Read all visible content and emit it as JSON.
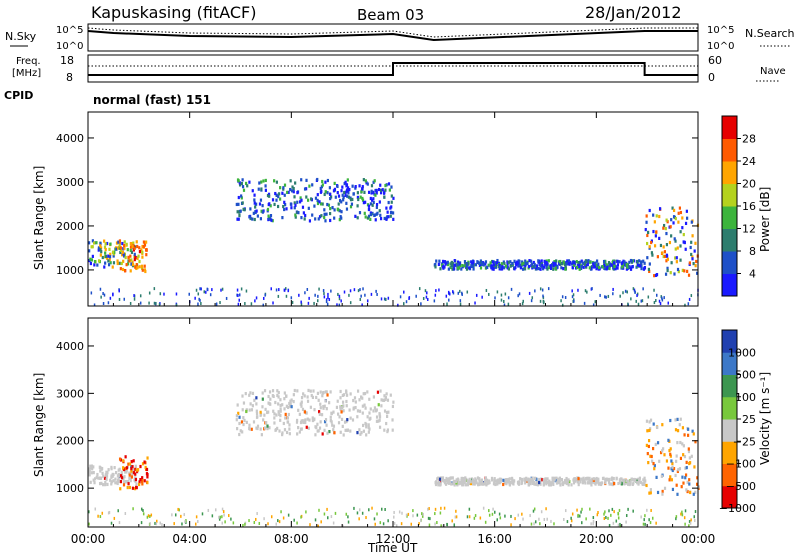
{
  "header": {
    "station": "Kapuskasing (fitACF)",
    "beam": "Beam 03",
    "date": "28/Jan/2012"
  },
  "top_panels": {
    "nsky_label": "N.Sky",
    "nsearch_label": "N.Search",
    "freq_label_1": "Freq.",
    "freq_label_2": "[MHz]",
    "nave_label": "Nave",
    "cpid_label": "CPID",
    "cpid_text": "normal (fast) 151",
    "noise_ticks": [
      "10^5",
      "10^0"
    ],
    "freq_ticks": [
      "18",
      "8"
    ],
    "nave_ticks": [
      "60",
      "0"
    ]
  },
  "chart_data": [
    {
      "type": "heatmap",
      "panel": "power",
      "ylabel": "Slant Range [km]",
      "ylim": [
        180,
        4590
      ],
      "yticks": [
        "1000",
        "2000",
        "3000",
        "4000"
      ],
      "xlim_hours": [
        0,
        24
      ],
      "colorbar": {
        "label": "Power [dB]",
        "ticks": [
          "4",
          "8",
          "12",
          "16",
          "20",
          "24",
          "28"
        ],
        "colors": [
          "#1a1aff",
          "#1e50c8",
          "#2d7d6e",
          "#3cb43c",
          "#b4d21e",
          "#ffa500",
          "#ff5a00",
          "#e60000"
        ]
      },
      "scatter_regions": [
        {
          "t0": 0.0,
          "t1": 1.9,
          "r0": 1100,
          "r1": 1700,
          "level": "low-mid"
        },
        {
          "t0": 1.2,
          "t1": 2.3,
          "r0": 1000,
          "r1": 1700,
          "level": "high"
        },
        {
          "t0": 5.8,
          "t1": 12.0,
          "r0": 2150,
          "r1": 3100,
          "level": "low"
        },
        {
          "t0": 13.6,
          "t1": 21.9,
          "r0": 1050,
          "r1": 1250,
          "level": "low"
        },
        {
          "t0": 21.9,
          "t1": 24.0,
          "r0": 900,
          "r1": 2500,
          "level": "mixed"
        }
      ]
    },
    {
      "type": "heatmap",
      "panel": "velocity",
      "ylabel": "Slant Range [km]",
      "ylim": [
        180,
        4590
      ],
      "yticks": [
        "1000",
        "2000",
        "3000",
        "4000"
      ],
      "xlim_hours": [
        0,
        24
      ],
      "colorbar": {
        "label": "Velocity [m s⁻¹]",
        "ticks": [
          "1000",
          "500",
          "100",
          "25",
          "−25",
          "−100",
          "−500",
          "−1000"
        ],
        "colors": [
          "#2040b0",
          "#3c78c8",
          "#3c9650",
          "#78c83c",
          "#c8c8c8",
          "#ffa500",
          "#ff6400",
          "#e60000"
        ]
      },
      "scatter_regions": [
        {
          "t0": 0.0,
          "t1": 1.9,
          "r0": 1100,
          "r1": 1500,
          "level": "ground"
        },
        {
          "t0": 1.2,
          "t1": 2.3,
          "r0": 1000,
          "r1": 1700,
          "level": "negative"
        },
        {
          "t0": 5.8,
          "t1": 12.0,
          "r0": 2150,
          "r1": 3100,
          "level": "ground"
        },
        {
          "t0": 13.6,
          "t1": 21.9,
          "r0": 1100,
          "r1": 1250,
          "level": "ground"
        },
        {
          "t0": 21.9,
          "t1": 24.0,
          "r0": 900,
          "r1": 2500,
          "level": "mixed"
        }
      ]
    }
  ],
  "xaxis": {
    "ticks": [
      "00:00",
      "04:00",
      "08:00",
      "12:00",
      "16:00",
      "20:00",
      "00:00"
    ],
    "label": "Time UT"
  },
  "colors": {
    "axis": "#000000",
    "ground": "#c8c8c8"
  }
}
